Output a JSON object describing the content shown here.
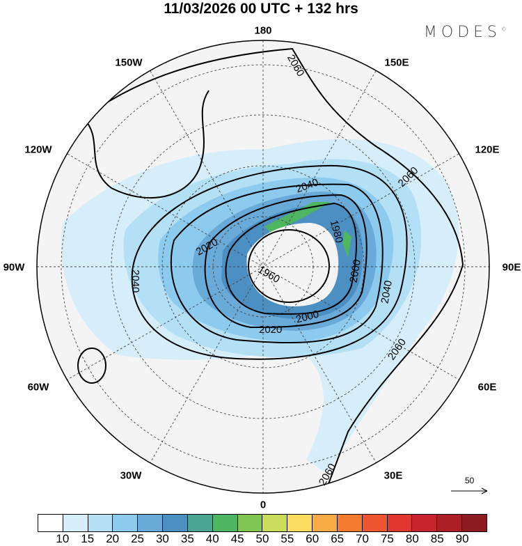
{
  "title": "11/03/2026  00 UTC  + 132 hrs",
  "logo": "MODES",
  "logo_mark": "©",
  "longitude_labels": [
    "180",
    "150E",
    "120E",
    "90E",
    "60E",
    "30E",
    "0",
    "30W",
    "60W",
    "90W",
    "120W",
    "150W"
  ],
  "contour_labels": [
    "2060",
    "2060",
    "2060",
    "2060",
    "2040",
    "2040",
    "2040",
    "2020",
    "2020",
    "2000",
    "2000",
    "1980",
    "1960"
  ],
  "vector_reference": {
    "label": "50"
  },
  "colorbar": {
    "labels": [
      "10",
      "15",
      "20",
      "25",
      "30",
      "35",
      "40",
      "45",
      "50",
      "55",
      "60",
      "65",
      "70",
      "75",
      "80",
      "85",
      "90"
    ],
    "colors": [
      "#ffffff",
      "#d6eefa",
      "#b3e0f5",
      "#8ccbee",
      "#6aaad9",
      "#4b8fc3",
      "#4aa595",
      "#4eb560",
      "#7fc552",
      "#c9dd5a",
      "#fbdc5f",
      "#f9ab46",
      "#f67b30",
      "#ee5631",
      "#e0382f",
      "#c8242d",
      "#ad1f27",
      "#8d1c22"
    ]
  }
}
